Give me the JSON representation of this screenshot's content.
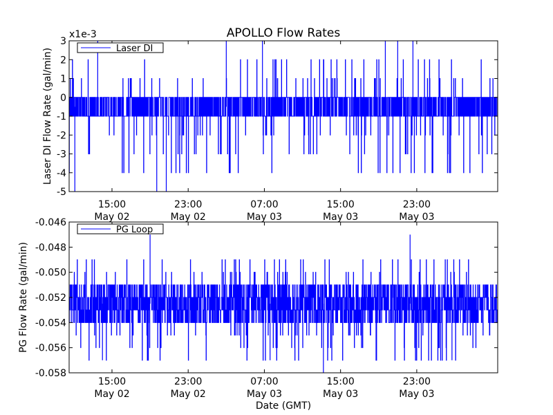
{
  "title": "APOLLO Flow Rates",
  "xlabel": "Date (GMT)",
  "colors": {
    "series": "#0000ff",
    "axes": "#000000",
    "background": "#ffffff"
  },
  "chart_data": [
    {
      "type": "line",
      "title": "APOLLO Flow Rates",
      "ylabel": "Laser DI Flow Rate (gal/min)",
      "offset_label": "x1e-3",
      "ylim": [
        -5,
        3
      ],
      "yticks": [
        -5,
        -4,
        -3,
        -2,
        -1,
        0,
        1,
        2,
        3
      ],
      "ytick_labels": [
        "-5",
        "-4",
        "-3",
        "-2",
        "-1",
        "0",
        "1",
        "2",
        "3"
      ],
      "xlim_hours": [
        0,
        45
      ],
      "xtick_hours": [
        4.5,
        12.5,
        20.5,
        28.5,
        36.5
      ],
      "xtick_labels": [
        [
          "15:00",
          "May 02"
        ],
        [
          "23:00",
          "May 02"
        ],
        [
          "07:00",
          "May 03"
        ],
        [
          "15:00",
          "May 03"
        ],
        [
          "23:00",
          "May 03"
        ]
      ],
      "legend": {
        "label": "Laser DI",
        "location": "upper-left"
      },
      "series": {
        "name": "Laser DI",
        "units": "1e-3 gal/min",
        "baseline_low": -1,
        "baseline_high": 0,
        "spike_levels": [
          -4,
          -3,
          -2,
          1,
          2
        ],
        "peaks": [
          {
            "hour": 0.6,
            "value": -5
          },
          {
            "hour": 3.0,
            "value": 3
          },
          {
            "hour": 9.2,
            "value": -5
          },
          {
            "hour": 10.2,
            "value": -5
          },
          {
            "hour": 16.5,
            "value": 3
          },
          {
            "hour": 20.3,
            "value": 3
          },
          {
            "hour": 33.2,
            "value": 3
          },
          {
            "hour": 34.5,
            "value": 3
          },
          {
            "hour": 36.1,
            "value": 3
          }
        ]
      }
    },
    {
      "type": "line",
      "ylabel": "PG Flow Rate (gal/min)",
      "ylim": [
        -0.058,
        -0.046
      ],
      "yticks": [
        -0.058,
        -0.056,
        -0.054,
        -0.052,
        -0.05,
        -0.048,
        -0.046
      ],
      "ytick_labels": [
        "-0.058",
        "-0.056",
        "-0.054",
        "-0.052",
        "-0.050",
        "-0.048",
        "-0.046"
      ],
      "xlim_hours": [
        0,
        45
      ],
      "xtick_hours": [
        4.5,
        12.5,
        20.5,
        28.5,
        36.5
      ],
      "xtick_labels": [
        [
          "15:00",
          "May 02"
        ],
        [
          "23:00",
          "May 02"
        ],
        [
          "07:00",
          "May 03"
        ],
        [
          "15:00",
          "May 03"
        ],
        [
          "23:00",
          "May 03"
        ]
      ],
      "xlabel": "Date (GMT)",
      "legend": {
        "label": "PG Loop",
        "location": "upper-left"
      },
      "series": {
        "name": "PG Loop",
        "units": "gal/min",
        "baseline_low": -0.054,
        "baseline_high": -0.051,
        "spike_levels": [
          -0.057,
          -0.056,
          -0.055,
          -0.05,
          -0.049
        ],
        "peaks": [
          {
            "hour": 8.5,
            "value": -0.047
          },
          {
            "hour": 35.8,
            "value": -0.047
          },
          {
            "hour": 3.5,
            "value": -0.057
          },
          {
            "hour": 21.1,
            "value": -0.057
          },
          {
            "hour": 26.7,
            "value": -0.058
          },
          {
            "hour": 40.2,
            "value": -0.057
          }
        ]
      }
    }
  ]
}
